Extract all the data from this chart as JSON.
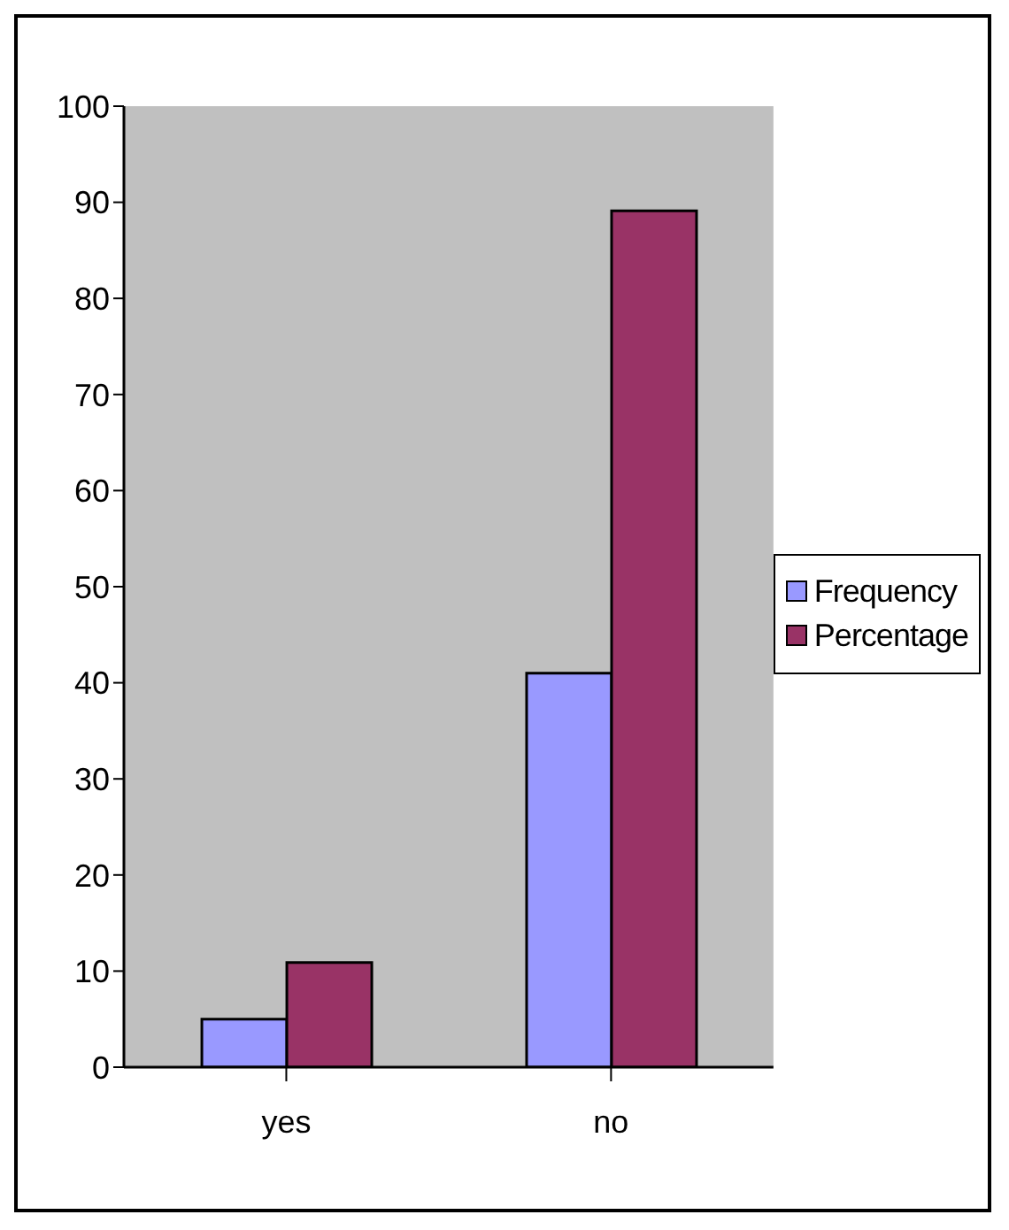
{
  "chart_data": {
    "type": "bar",
    "categories": [
      "yes",
      "no"
    ],
    "series": [
      {
        "name": "Frequency",
        "color": "#9999ff",
        "values": [
          5,
          41
        ]
      },
      {
        "name": "Percentage",
        "color": "#993366",
        "values": [
          10.9,
          89.1
        ]
      }
    ],
    "ylim": [
      0,
      100
    ],
    "yticks": [
      0,
      10,
      20,
      30,
      40,
      50,
      60,
      70,
      80,
      90,
      100
    ],
    "grid": false,
    "legend": "right"
  }
}
